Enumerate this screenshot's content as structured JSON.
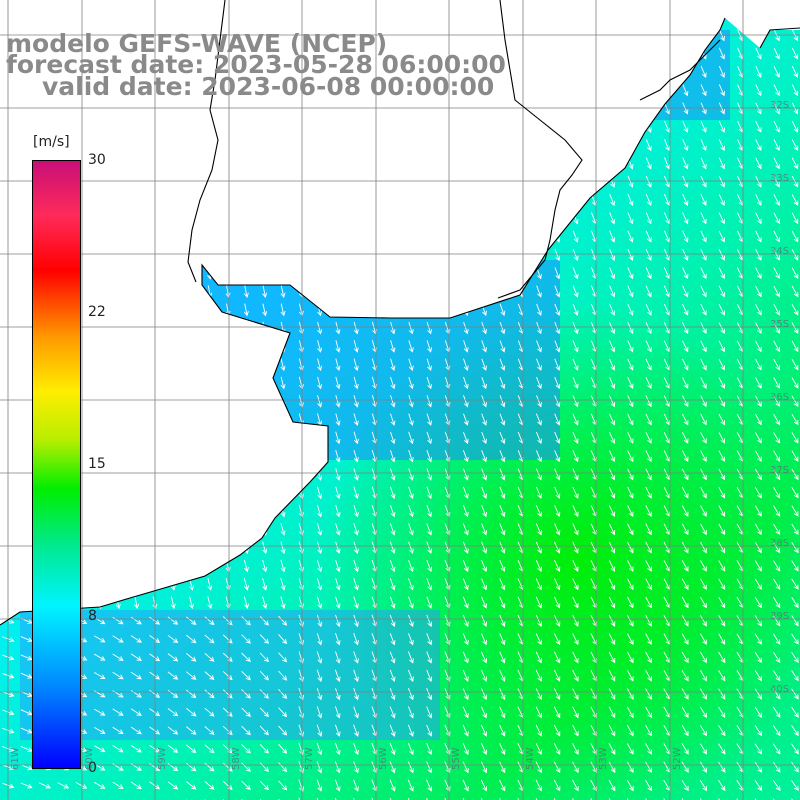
{
  "header": {
    "model_line": "modelo GEFS-WAVE (NCEP)",
    "forecast_line": "forecast date: 2023-05-28 06:00:00",
    "valid_line": "valid date: 2023-06-08 00:00:00"
  },
  "colorbar": {
    "unit": "[m/s]",
    "min": 0,
    "max": 30,
    "ticks": [
      "30",
      "22",
      "15",
      "8",
      "0"
    ],
    "tick_values": [
      30,
      22,
      15,
      8,
      0
    ],
    "colors": [
      "#0000ff",
      "#0088ff",
      "#00f4ff",
      "#00ee00",
      "#ffee00",
      "#ff0000",
      "#c80f78"
    ]
  },
  "map": {
    "land_color": "#ffffff",
    "coast_color": "#000000",
    "grid_color": "#7f7f7f",
    "lat_labels": [
      "32S",
      "33S",
      "34S",
      "35S",
      "36S",
      "37S",
      "38S",
      "39S",
      "40S"
    ],
    "lon_labels": [
      "61W",
      "60W",
      "59W",
      "58W",
      "57W",
      "56W",
      "55W",
      "54W",
      "53W",
      "52W"
    ]
  },
  "field_colors": {
    "blue": "#1e8cff",
    "sky": "#2ab4ff",
    "cyan": "#00eaff",
    "aqua": "#00f4c8",
    "green": "#00ee55",
    "bright_green": "#00ee00"
  }
}
